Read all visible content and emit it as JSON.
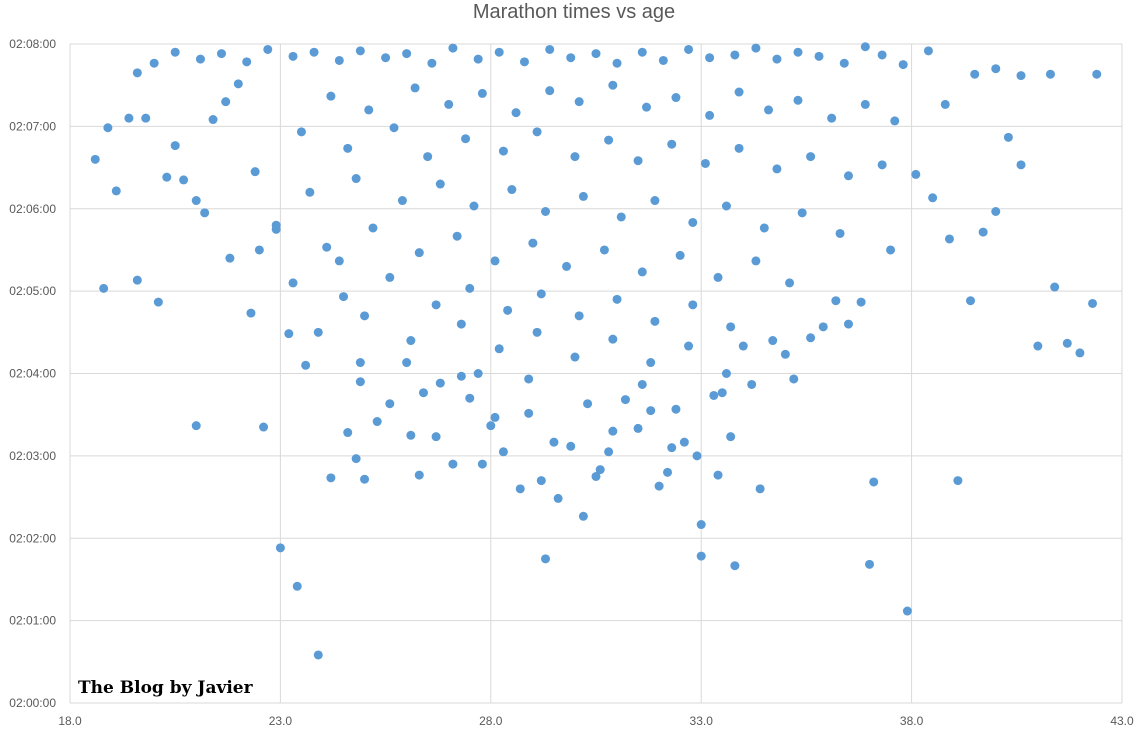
{
  "chart_data": {
    "type": "scatter",
    "title": "Marathon times vs age",
    "xlabel": "",
    "ylabel": "",
    "xlim": [
      18.0,
      43.0
    ],
    "ylim": [
      0,
      480
    ],
    "x_ticks": [
      "18.0",
      "23.0",
      "28.0",
      "33.0",
      "38.0",
      "43.0"
    ],
    "y_ticks": [
      "02:00:00",
      "02:01:00",
      "02:02:00",
      "02:03:00",
      "02:04:00",
      "02:05:00",
      "02:06:00",
      "02:07:00",
      "02:08:00"
    ],
    "y_unit": "seconds above 02:00:00",
    "grid": true,
    "legend": "none",
    "marker_color": "#5b9bd5",
    "watermark": "The Blog by Javier",
    "series": [
      {
        "points": [
          [
            18.6,
            396
          ],
          [
            18.8,
            302
          ],
          [
            18.9,
            419
          ],
          [
            19.1,
            373
          ],
          [
            19.4,
            426
          ],
          [
            19.6,
            308
          ],
          [
            19.8,
            426
          ],
          [
            20.1,
            292
          ],
          [
            20.3,
            383
          ],
          [
            20.5,
            406
          ],
          [
            20.7,
            381
          ],
          [
            21.0,
            366
          ],
          [
            21.2,
            357
          ],
          [
            21.4,
            425
          ],
          [
            21.7,
            438
          ],
          [
            22.0,
            451
          ],
          [
            21.0,
            202
          ],
          [
            22.6,
            201
          ],
          [
            22.5,
            330
          ],
          [
            22.9,
            348
          ],
          [
            23.0,
            113
          ],
          [
            23.2,
            269
          ],
          [
            23.4,
            85
          ],
          [
            23.9,
            35
          ],
          [
            24.2,
            164
          ],
          [
            24.6,
            197
          ],
          [
            25.0,
            163
          ],
          [
            24.4,
            322
          ],
          [
            24.9,
            248
          ],
          [
            25.6,
            218
          ],
          [
            26.1,
            195
          ],
          [
            26.4,
            226
          ],
          [
            26.8,
            233
          ],
          [
            27.1,
            174
          ],
          [
            27.3,
            238
          ],
          [
            27.7,
            240
          ],
          [
            28.1,
            208
          ],
          [
            28.3,
            183
          ],
          [
            28.7,
            156
          ],
          [
            28.9,
            211
          ],
          [
            29.3,
            105
          ],
          [
            29.6,
            149
          ],
          [
            29.9,
            187
          ],
          [
            30.2,
            136
          ],
          [
            30.5,
            165
          ],
          [
            30.8,
            183
          ],
          [
            31.2,
            221
          ],
          [
            31.5,
            200
          ],
          [
            31.8,
            213
          ],
          [
            32.2,
            168
          ],
          [
            32.6,
            190
          ],
          [
            32.9,
            180
          ],
          [
            33.0,
            130
          ],
          [
            33.0,
            107
          ],
          [
            33.3,
            224
          ],
          [
            33.6,
            240
          ],
          [
            33.8,
            100
          ],
          [
            34.0,
            260
          ],
          [
            34.2,
            232
          ],
          [
            34.4,
            156
          ],
          [
            34.7,
            264
          ],
          [
            35.0,
            254
          ],
          [
            35.2,
            236
          ],
          [
            35.6,
            266
          ],
          [
            35.9,
            274
          ],
          [
            36.2,
            293
          ],
          [
            36.5,
            276
          ],
          [
            36.8,
            292
          ],
          [
            37.0,
            101
          ],
          [
            37.1,
            161
          ],
          [
            37.5,
            330
          ],
          [
            37.9,
            67
          ],
          [
            38.1,
            385
          ],
          [
            38.5,
            368
          ],
          [
            38.9,
            338
          ],
          [
            39.1,
            162
          ],
          [
            39.4,
            293
          ],
          [
            39.7,
            343
          ],
          [
            40.0,
            358
          ],
          [
            40.3,
            412
          ],
          [
            40.6,
            392
          ],
          [
            41.0,
            260
          ],
          [
            41.4,
            303
          ],
          [
            41.7,
            262
          ],
          [
            42.0,
            255
          ],
          [
            42.3,
            291
          ],
          [
            42.4,
            458
          ],
          [
            41.3,
            458
          ],
          [
            40.6,
            457
          ],
          [
            40.0,
            462
          ],
          [
            39.5,
            458
          ],
          [
            38.8,
            436
          ],
          [
            38.4,
            475
          ],
          [
            37.8,
            465
          ],
          [
            37.3,
            472
          ],
          [
            36.9,
            478
          ],
          [
            36.4,
            466
          ],
          [
            35.8,
            471
          ],
          [
            35.3,
            474
          ],
          [
            34.8,
            469
          ],
          [
            34.3,
            477
          ],
          [
            33.8,
            472
          ],
          [
            33.2,
            470
          ],
          [
            32.7,
            476
          ],
          [
            32.1,
            468
          ],
          [
            31.6,
            474
          ],
          [
            31.0,
            466
          ],
          [
            30.5,
            473
          ],
          [
            29.9,
            470
          ],
          [
            29.4,
            476
          ],
          [
            28.8,
            467
          ],
          [
            28.2,
            474
          ],
          [
            27.7,
            469
          ],
          [
            27.1,
            477
          ],
          [
            26.6,
            466
          ],
          [
            26.0,
            473
          ],
          [
            25.5,
            470
          ],
          [
            24.9,
            475
          ],
          [
            24.4,
            468
          ],
          [
            23.8,
            474
          ],
          [
            23.3,
            471
          ],
          [
            22.7,
            476
          ],
          [
            22.2,
            467
          ],
          [
            21.6,
            473
          ],
          [
            21.1,
            469
          ],
          [
            20.5,
            474
          ],
          [
            20.0,
            466
          ],
          [
            19.6,
            459
          ],
          [
            24.2,
            442
          ],
          [
            25.1,
            432
          ],
          [
            26.2,
            448
          ],
          [
            27.0,
            436
          ],
          [
            27.8,
            444
          ],
          [
            28.6,
            430
          ],
          [
            29.4,
            446
          ],
          [
            30.1,
            438
          ],
          [
            30.9,
            450
          ],
          [
            31.7,
            434
          ],
          [
            32.4,
            441
          ],
          [
            33.2,
            428
          ],
          [
            33.9,
            445
          ],
          [
            34.6,
            432
          ],
          [
            35.3,
            439
          ],
          [
            36.1,
            426
          ],
          [
            36.9,
            436
          ],
          [
            37.6,
            424
          ],
          [
            23.5,
            416
          ],
          [
            24.6,
            404
          ],
          [
            25.7,
            419
          ],
          [
            26.5,
            398
          ],
          [
            27.4,
            411
          ],
          [
            28.3,
            402
          ],
          [
            29.1,
            416
          ],
          [
            30.0,
            398
          ],
          [
            30.8,
            410
          ],
          [
            31.5,
            395
          ],
          [
            32.3,
            407
          ],
          [
            33.1,
            393
          ],
          [
            33.9,
            404
          ],
          [
            34.8,
            389
          ],
          [
            35.6,
            398
          ],
          [
            36.5,
            384
          ],
          [
            37.3,
            392
          ],
          [
            22.4,
            387
          ],
          [
            23.7,
            372
          ],
          [
            24.8,
            382
          ],
          [
            25.9,
            366
          ],
          [
            26.8,
            378
          ],
          [
            27.6,
            362
          ],
          [
            28.5,
            374
          ],
          [
            29.3,
            358
          ],
          [
            30.2,
            369
          ],
          [
            31.1,
            354
          ],
          [
            31.9,
            366
          ],
          [
            32.8,
            350
          ],
          [
            33.6,
            362
          ],
          [
            34.5,
            346
          ],
          [
            35.4,
            357
          ],
          [
            36.3,
            342
          ],
          [
            22.9,
            345
          ],
          [
            24.1,
            332
          ],
          [
            25.2,
            346
          ],
          [
            26.3,
            328
          ],
          [
            27.2,
            340
          ],
          [
            28.1,
            322
          ],
          [
            29.0,
            335
          ],
          [
            29.8,
            318
          ],
          [
            30.7,
            330
          ],
          [
            31.6,
            314
          ],
          [
            32.5,
            326
          ],
          [
            33.4,
            310
          ],
          [
            34.3,
            322
          ],
          [
            35.1,
            306
          ],
          [
            21.8,
            324
          ],
          [
            23.3,
            306
          ],
          [
            24.5,
            296
          ],
          [
            25.6,
            310
          ],
          [
            26.7,
            290
          ],
          [
            27.5,
            302
          ],
          [
            28.4,
            286
          ],
          [
            29.2,
            298
          ],
          [
            30.1,
            282
          ],
          [
            31.0,
            294
          ],
          [
            31.9,
            278
          ],
          [
            32.8,
            290
          ],
          [
            33.7,
            274
          ],
          [
            22.3,
            284
          ],
          [
            23.9,
            270
          ],
          [
            25.0,
            282
          ],
          [
            26.1,
            264
          ],
          [
            27.3,
            276
          ],
          [
            28.2,
            258
          ],
          [
            29.1,
            270
          ],
          [
            30.0,
            252
          ],
          [
            30.9,
            265
          ],
          [
            31.8,
            248
          ],
          [
            32.7,
            260
          ],
          [
            23.6,
            246
          ],
          [
            24.9,
            234
          ],
          [
            26.0,
            248
          ],
          [
            27.5,
            222
          ],
          [
            28.9,
            236
          ],
          [
            30.3,
            218
          ],
          [
            31.6,
            232
          ],
          [
            32.4,
            214
          ],
          [
            33.5,
            226
          ],
          [
            25.3,
            205
          ],
          [
            26.7,
            194
          ],
          [
            28.0,
            202
          ],
          [
            29.5,
            190
          ],
          [
            30.9,
            198
          ],
          [
            32.3,
            186
          ],
          [
            33.7,
            194
          ],
          [
            24.8,
            178
          ],
          [
            26.3,
            166
          ],
          [
            27.8,
            174
          ],
          [
            29.2,
            162
          ],
          [
            30.6,
            170
          ],
          [
            32.0,
            158
          ],
          [
            33.4,
            166
          ]
        ]
      }
    ]
  }
}
